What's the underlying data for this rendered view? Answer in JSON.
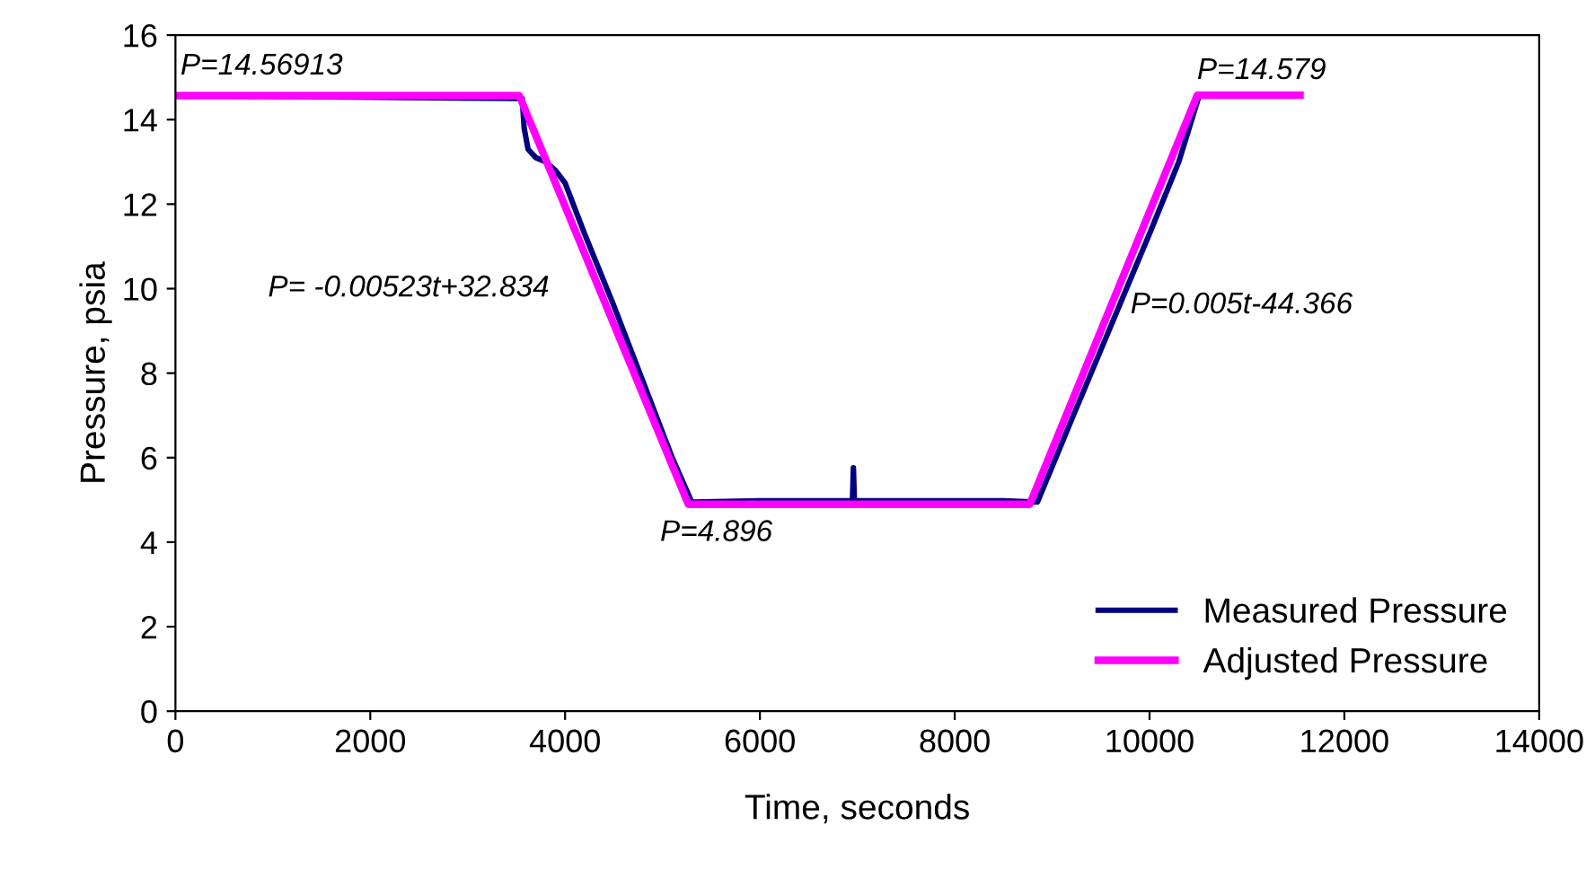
{
  "chart_data": {
    "type": "line",
    "xlabel": "Time, seconds",
    "ylabel": "Pressure, psia",
    "xlim": [
      0,
      14000
    ],
    "xticks": [
      0,
      2000,
      4000,
      6000,
      8000,
      10000,
      12000,
      14000
    ],
    "ylim": [
      0,
      16
    ],
    "yticks": [
      0,
      2,
      4,
      6,
      8,
      10,
      12,
      14,
      16
    ],
    "grid": false,
    "legend": "bottom right",
    "series": [
      {
        "name": "Measured Pressure",
        "color": "#000080",
        "x": [
          0,
          3560,
          3580,
          3620,
          3700,
          3800,
          3900,
          4000,
          4200,
          4500,
          4800,
          5100,
          5300,
          6000,
          6950,
          6960,
          6970,
          7500,
          8500,
          8850,
          9200,
          9600,
          10000,
          10300,
          10500
        ],
        "values": [
          14.57,
          14.5,
          13.8,
          13.3,
          13.1,
          13.0,
          12.8,
          12.5,
          11.3,
          9.6,
          7.8,
          6.0,
          4.95,
          4.98,
          4.98,
          5.76,
          4.98,
          4.98,
          4.98,
          4.95,
          6.9,
          9.1,
          11.3,
          13.0,
          14.5
        ]
      },
      {
        "name": "Adjusted Pressure",
        "color": "#ff00ff",
        "x": [
          0,
          3530,
          5265,
          8770,
          10490,
          11545
        ],
        "values": [
          14.569,
          14.569,
          4.896,
          4.896,
          14.579,
          14.579
        ]
      }
    ],
    "annotations": [
      {
        "text": "P=14.56913",
        "x": 0,
        "y": 14.569
      },
      {
        "text": "P= -0.00523t+32.834",
        "x": 4350,
        "y": 10.0
      },
      {
        "text": "P=4.896",
        "x": 6000,
        "y": 4.896
      },
      {
        "text": "P=0.005t-44.366",
        "x": 9650,
        "y": 9.6
      },
      {
        "text": "P=14.579",
        "x": 11000,
        "y": 14.579
      }
    ]
  }
}
